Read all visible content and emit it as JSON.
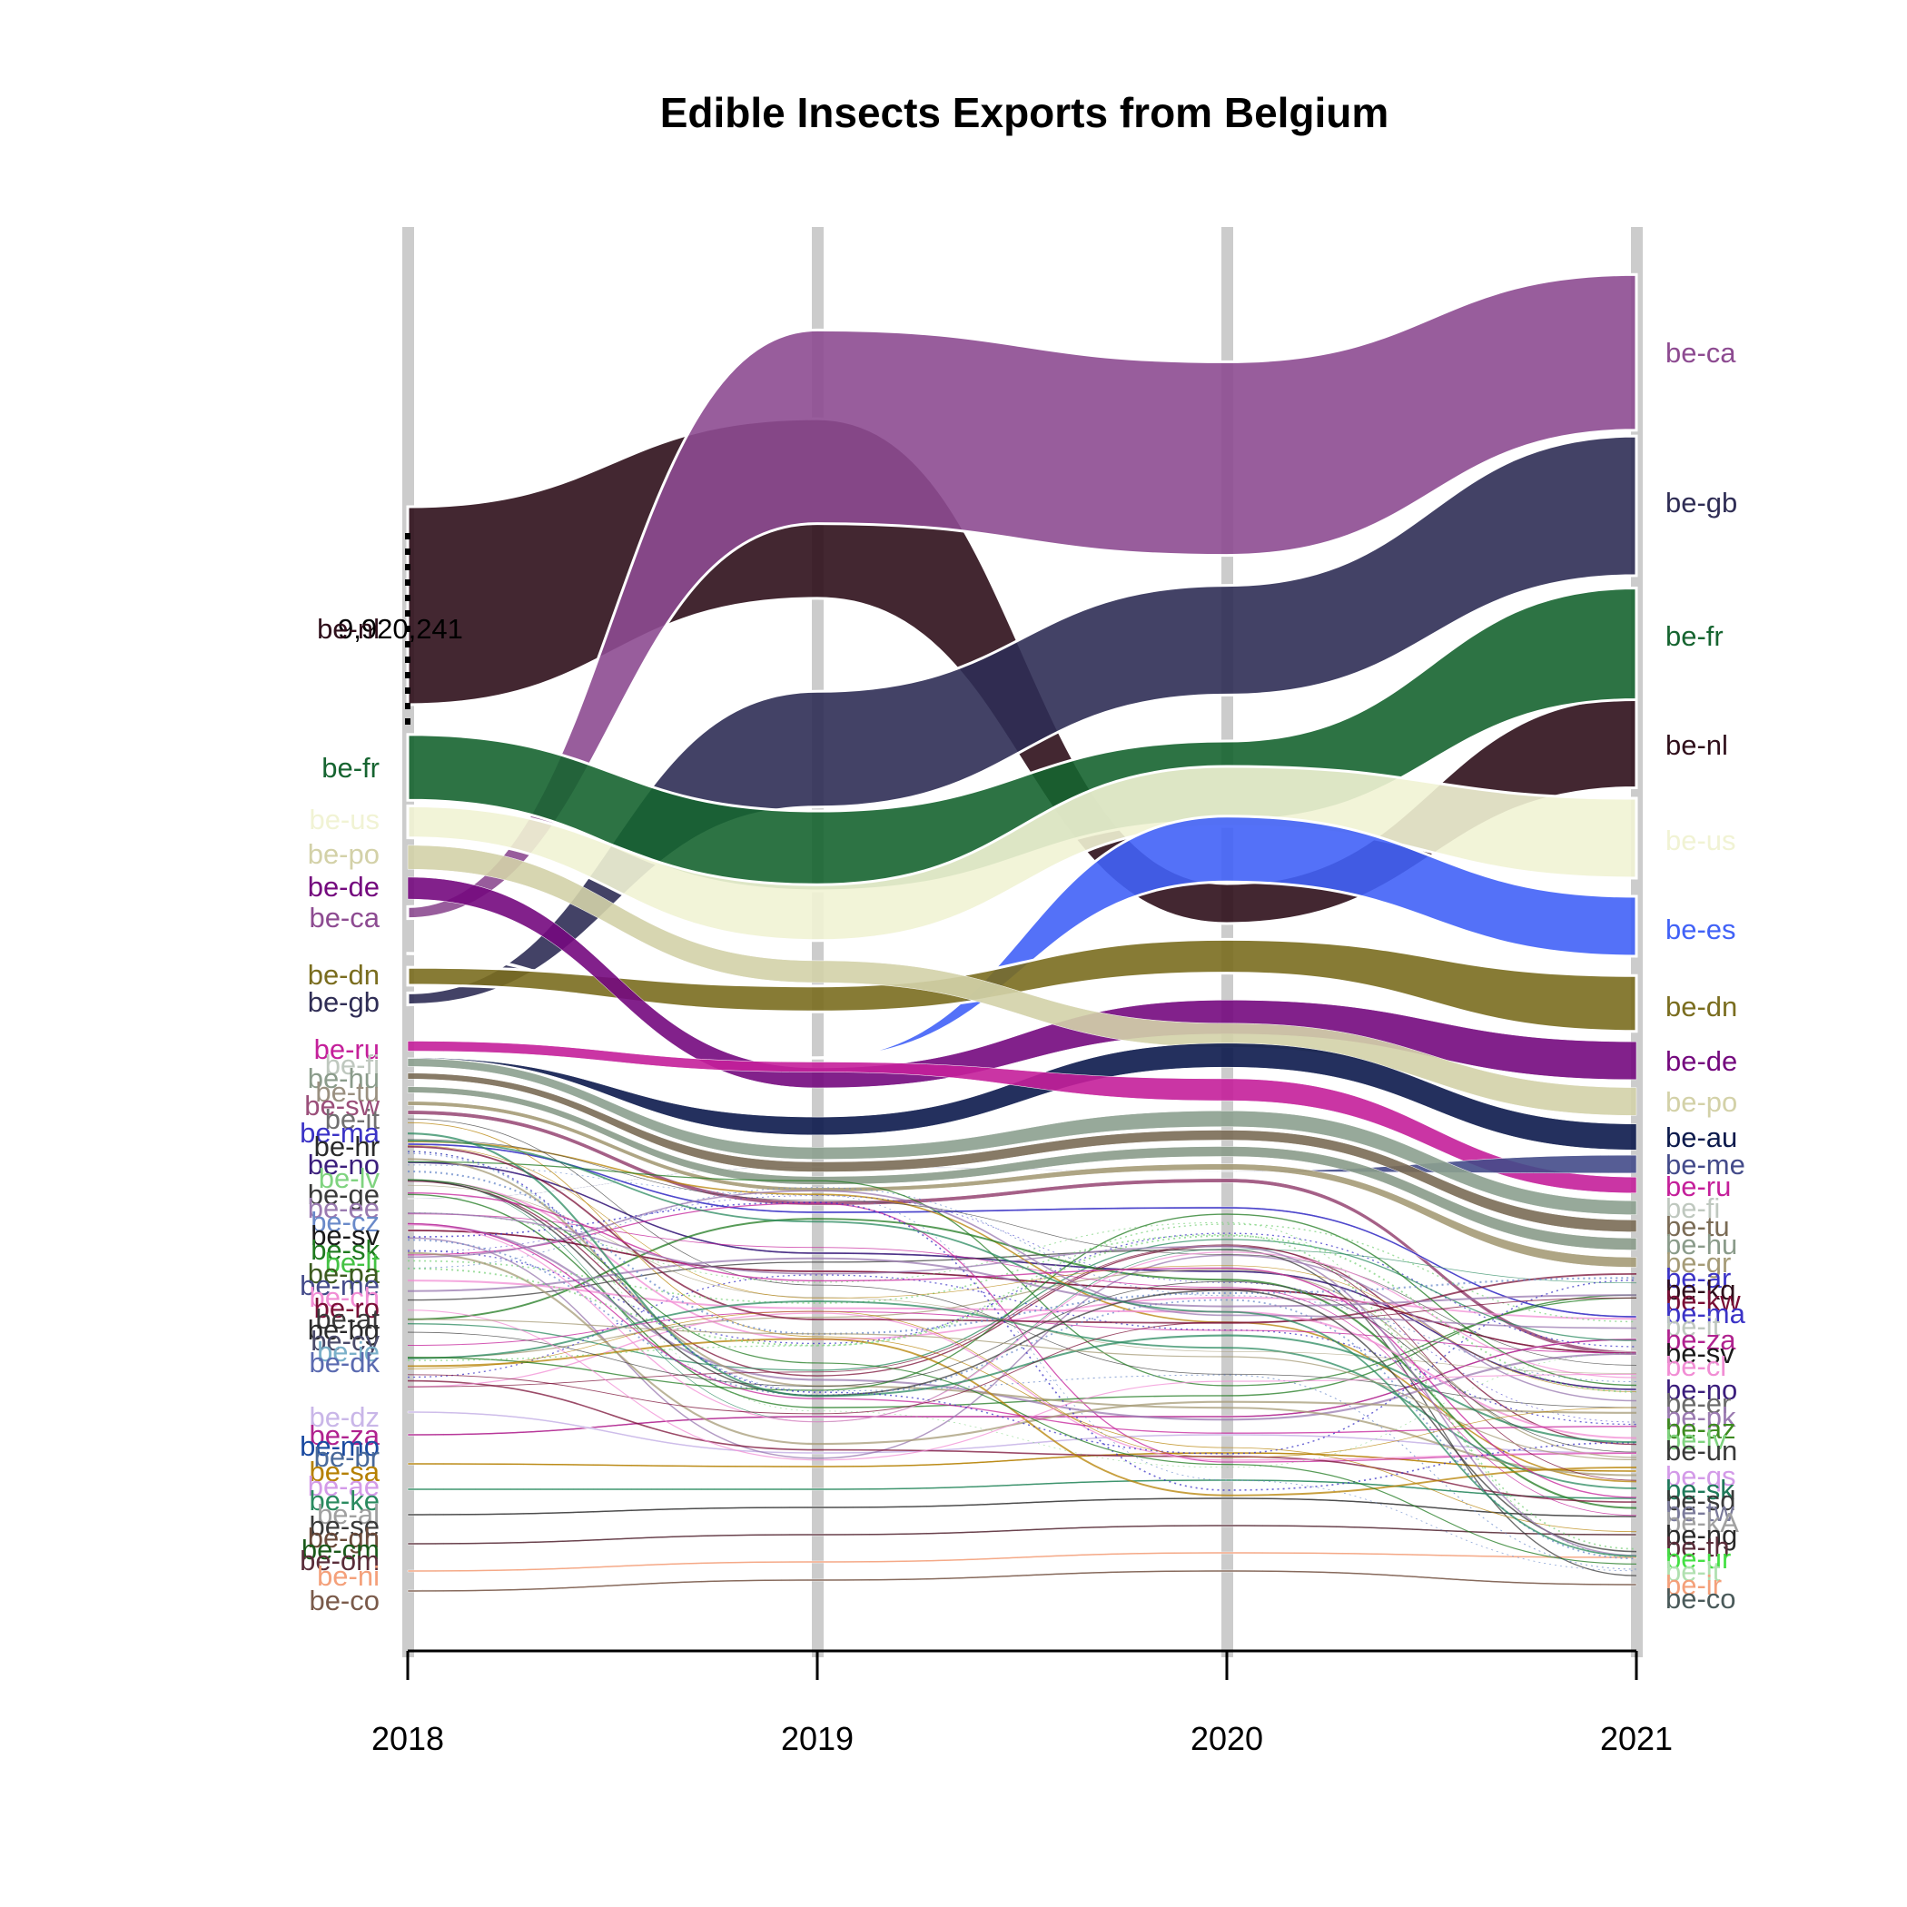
{
  "chart_data": {
    "type": "area",
    "title": "Edible Insects Exports from Belgium",
    "xlabel": "",
    "ylabel": "",
    "x": [
      "2018",
      "2019",
      "2020",
      "2021"
    ],
    "annotation": "9,920,241",
    "grid": "vertical bars at each year",
    "series": [
      {
        "name": "be-nl",
        "color": "#2f0f1b",
        "values": [
          9920241,
          9000000,
          2000000,
          4500000
        ]
      },
      {
        "name": "be-ca",
        "color": "#8d4b91",
        "values": [
          600000,
          9700000,
          9700000,
          7800000
        ]
      },
      {
        "name": "be-gb",
        "color": "#2f2d55",
        "values": [
          600000,
          5800000,
          5500000,
          7000000
        ]
      },
      {
        "name": "be-fr",
        "color": "#166430",
        "values": [
          3300000,
          4000000,
          4000000,
          5600000
        ]
      },
      {
        "name": "be-us",
        "color": "#f1f3d4",
        "values": [
          1600000,
          2800000,
          3000000,
          4000000
        ]
      },
      {
        "name": "be-es",
        "color": "#4162f7",
        "values": [
          0,
          0,
          3300000,
          3000000
        ]
      },
      {
        "name": "be-dn",
        "color": "#7a6d1f",
        "values": [
          900000,
          1300000,
          1700000,
          2800000
        ]
      },
      {
        "name": "be-de",
        "color": "#74097e",
        "values": [
          1100000,
          1000000,
          1700000,
          1900000
        ]
      },
      {
        "name": "be-po",
        "color": "#d3d1a8",
        "values": [
          1200000,
          1100000,
          1200000,
          1400000
        ]
      },
      {
        "name": "be-au",
        "color": "#0c1a4c",
        "values": [
          0,
          900000,
          1200000,
          1300000
        ]
      },
      {
        "name": "be-me",
        "color": "#444b8a",
        "values": [
          0,
          0,
          0,
          900000
        ]
      },
      {
        "name": "be-ru",
        "color": "#c41f9a",
        "values": [
          500000,
          500000,
          1100000,
          800000
        ]
      },
      {
        "name": "be-fi",
        "color": "#8ca08f",
        "values": [
          400000,
          600000,
          800000,
          700000
        ]
      },
      {
        "name": "be-tu",
        "color": "#7a6b55",
        "values": [
          300000,
          500000,
          500000,
          600000
        ]
      },
      {
        "name": "be-hu",
        "color": "#8a9b8a",
        "values": [
          300000,
          400000,
          500000,
          600000
        ]
      },
      {
        "name": "be-gr",
        "color": "#a59b77",
        "values": [
          200000,
          200000,
          300000,
          500000
        ]
      },
      {
        "name": "be-sw",
        "color": "#9b4f7a",
        "values": [
          200000,
          200000,
          200000,
          200000
        ]
      },
      {
        "name": "be-ma",
        "color": "#3b33c6",
        "values": [
          100000,
          100000,
          100000,
          100000
        ]
      },
      {
        "name": "be-no",
        "color": "#3b1e7c",
        "values": [
          100000,
          100000,
          100000,
          100000
        ]
      },
      {
        "name": "be-sv",
        "color": "#7a0f36",
        "values": [
          100000,
          100000,
          100000,
          100000
        ]
      },
      {
        "name": "be-za",
        "color": "#b0228f",
        "values": [
          50000,
          50000,
          50000,
          50000
        ]
      },
      {
        "name": "be-dz",
        "color": "#c9b6e8",
        "values": [
          30000,
          30000,
          30000,
          30000
        ]
      },
      {
        "name": "be-sa",
        "color": "#b58000",
        "values": [
          30000,
          30000,
          30000,
          30000
        ]
      },
      {
        "name": "be-ke",
        "color": "#2a8a5f",
        "values": [
          20000,
          20000,
          20000,
          20000
        ]
      },
      {
        "name": "be-se",
        "color": "#3a3a3a",
        "values": [
          20000,
          20000,
          20000,
          20000
        ]
      },
      {
        "name": "be-om",
        "color": "#5a2d3a",
        "values": [
          20000,
          20000,
          20000,
          20000
        ]
      },
      {
        "name": "be-ni",
        "color": "#f4a07a",
        "values": [
          10000,
          10000,
          10000,
          10000
        ]
      },
      {
        "name": "be-co",
        "color": "#7a5a4a",
        "values": [
          10000,
          10000,
          10000,
          10000
        ]
      }
    ],
    "left_labels": [
      {
        "text": "be-nl",
        "color": "#2f0f1b"
      },
      {
        "text": "be-fr",
        "color": "#166430"
      },
      {
        "text": "be-us",
        "color": "#f1f3d4"
      },
      {
        "text": "be-po",
        "color": "#d3d1a8"
      },
      {
        "text": "be-de",
        "color": "#74097e"
      },
      {
        "text": "be-ca",
        "color": "#8d4b91"
      },
      {
        "text": "be-dn",
        "color": "#7a6d1f"
      },
      {
        "text": "be-gb",
        "color": "#2f2d55"
      },
      {
        "text": "be-ru",
        "color": "#c41f9a"
      },
      {
        "text": "be-fi",
        "color": "#bfc8bf"
      },
      {
        "text": "be-hu",
        "color": "#8a9b8a"
      },
      {
        "text": "be-tu",
        "color": "#9a9080"
      },
      {
        "text": "be-sw",
        "color": "#9b4f7a"
      },
      {
        "text": "be-it",
        "color": "#707070"
      },
      {
        "text": "be-ma",
        "color": "#3b33c6"
      },
      {
        "text": "be-hr",
        "color": "#2a2a2a"
      },
      {
        "text": "be-no",
        "color": "#3b1e7c"
      },
      {
        "text": "be-lv",
        "color": "#7fd37f"
      },
      {
        "text": "be-ge",
        "color": "#3a3a3a"
      },
      {
        "text": "be-ee",
        "color": "#9a7ab0"
      },
      {
        "text": "be-cz",
        "color": "#6a8ac9"
      },
      {
        "text": "be-sv",
        "color": "#1a1a1a"
      },
      {
        "text": "be-sk",
        "color": "#1f7a1f"
      },
      {
        "text": "be-lt",
        "color": "#44c244"
      },
      {
        "text": "be-pa",
        "color": "#3d5a1f"
      },
      {
        "text": "be-me",
        "color": "#444b8a"
      },
      {
        "text": "be-ch",
        "color": "#f18dd4"
      },
      {
        "text": "be-ro",
        "color": "#7a0f36"
      },
      {
        "text": "be-at",
        "color": "#3a3a3a"
      },
      {
        "text": "be-bg",
        "color": "#2a2a2a"
      },
      {
        "text": "be-cy",
        "color": "#4a4a6a"
      },
      {
        "text": "be-ie",
        "color": "#7ab0c9"
      },
      {
        "text": "be-dk",
        "color": "#5a6ab0"
      },
      {
        "text": "be-dz",
        "color": "#c9b6e8"
      },
      {
        "text": "be-za",
        "color": "#b0228f"
      },
      {
        "text": "be-mo",
        "color": "#1a4aa0"
      },
      {
        "text": "be-br",
        "color": "#4a6a9a"
      },
      {
        "text": "be-sa",
        "color": "#b58000"
      },
      {
        "text": "be-ae",
        "color": "#d39ae8"
      },
      {
        "text": "be-ke",
        "color": "#2a8a5f"
      },
      {
        "text": "be-al",
        "color": "#a0a0a0"
      },
      {
        "text": "be-se",
        "color": "#3a3a3a"
      },
      {
        "text": "be-gh",
        "color": "#6a4a3a"
      },
      {
        "text": "be-cm",
        "color": "#1a5a1a"
      },
      {
        "text": "be-om",
        "color": "#5a2d3a"
      },
      {
        "text": "be-ni",
        "color": "#f4a07a"
      },
      {
        "text": "be-co",
        "color": "#7a5a4a"
      }
    ],
    "right_labels": [
      {
        "text": "be-ca",
        "color": "#8d4b91"
      },
      {
        "text": "be-gb",
        "color": "#2f2d55"
      },
      {
        "text": "be-fr",
        "color": "#166430"
      },
      {
        "text": "be-nl",
        "color": "#2f0f1b"
      },
      {
        "text": "be-us",
        "color": "#f1f3d4"
      },
      {
        "text": "be-es",
        "color": "#4162f7"
      },
      {
        "text": "be-dn",
        "color": "#7a6d1f"
      },
      {
        "text": "be-de",
        "color": "#74097e"
      },
      {
        "text": "be-po",
        "color": "#d3d1a8"
      },
      {
        "text": "be-au",
        "color": "#0c1a4c"
      },
      {
        "text": "be-me",
        "color": "#444b8a"
      },
      {
        "text": "be-ru",
        "color": "#c41f9a"
      },
      {
        "text": "be-fi",
        "color": "#bfc8bf"
      },
      {
        "text": "be-tu",
        "color": "#7a6b55"
      },
      {
        "text": "be-hu",
        "color": "#8a9b8a"
      },
      {
        "text": "be-gr",
        "color": "#a59b77"
      },
      {
        "text": "be-ar",
        "color": "#3b33c6"
      },
      {
        "text": "be-kq",
        "color": "#2f0f1b"
      },
      {
        "text": "be-kw",
        "color": "#7a0f36"
      },
      {
        "text": "be-ma",
        "color": "#3b33c6"
      },
      {
        "text": "be-it",
        "color": "#bfc8bf"
      },
      {
        "text": "be-za",
        "color": "#b0228f"
      },
      {
        "text": "be-sv",
        "color": "#1a1a1a"
      },
      {
        "text": "be-cl",
        "color": "#f18dd4"
      },
      {
        "text": "be-no",
        "color": "#3b1e7c"
      },
      {
        "text": "be-er",
        "color": "#6a6a6a"
      },
      {
        "text": "be-pk",
        "color": "#9a7ab0"
      },
      {
        "text": "be-az",
        "color": "#3d8a1f"
      },
      {
        "text": "be-lv",
        "color": "#7fd37f"
      },
      {
        "text": "be-un",
        "color": "#3a3a3a"
      },
      {
        "text": "be-qs",
        "color": "#d39ae8"
      },
      {
        "text": "be-sk",
        "color": "#1f7a5a"
      },
      {
        "text": "be-sd",
        "color": "#3a3a3a"
      },
      {
        "text": "be-tw",
        "color": "#7a7a9a"
      },
      {
        "text": "be-kA",
        "color": "#a0a0a0"
      },
      {
        "text": "be-ng",
        "color": "#2a2a2a"
      },
      {
        "text": "be-th",
        "color": "#5a2d3a"
      },
      {
        "text": "be-ur",
        "color": "#44e044"
      },
      {
        "text": "be-lt",
        "color": "#b0e0b0"
      },
      {
        "text": "be-ir",
        "color": "#f4a07a"
      },
      {
        "text": "be-co",
        "color": "#4a5a5a"
      }
    ]
  }
}
